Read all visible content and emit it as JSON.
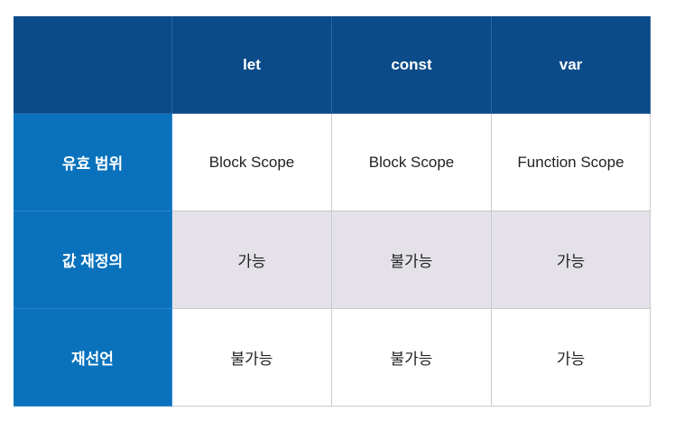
{
  "table": {
    "columns": [
      "let",
      "const",
      "var"
    ],
    "rows": [
      [
        "유효 범위",
        "Block Scope",
        "Block Scope",
        "Function Scope"
      ],
      [
        "값 재정의",
        "가능",
        "불가능",
        "가능"
      ],
      [
        "재선언",
        "불가능",
        "불가능",
        "가능"
      ]
    ]
  }
}
